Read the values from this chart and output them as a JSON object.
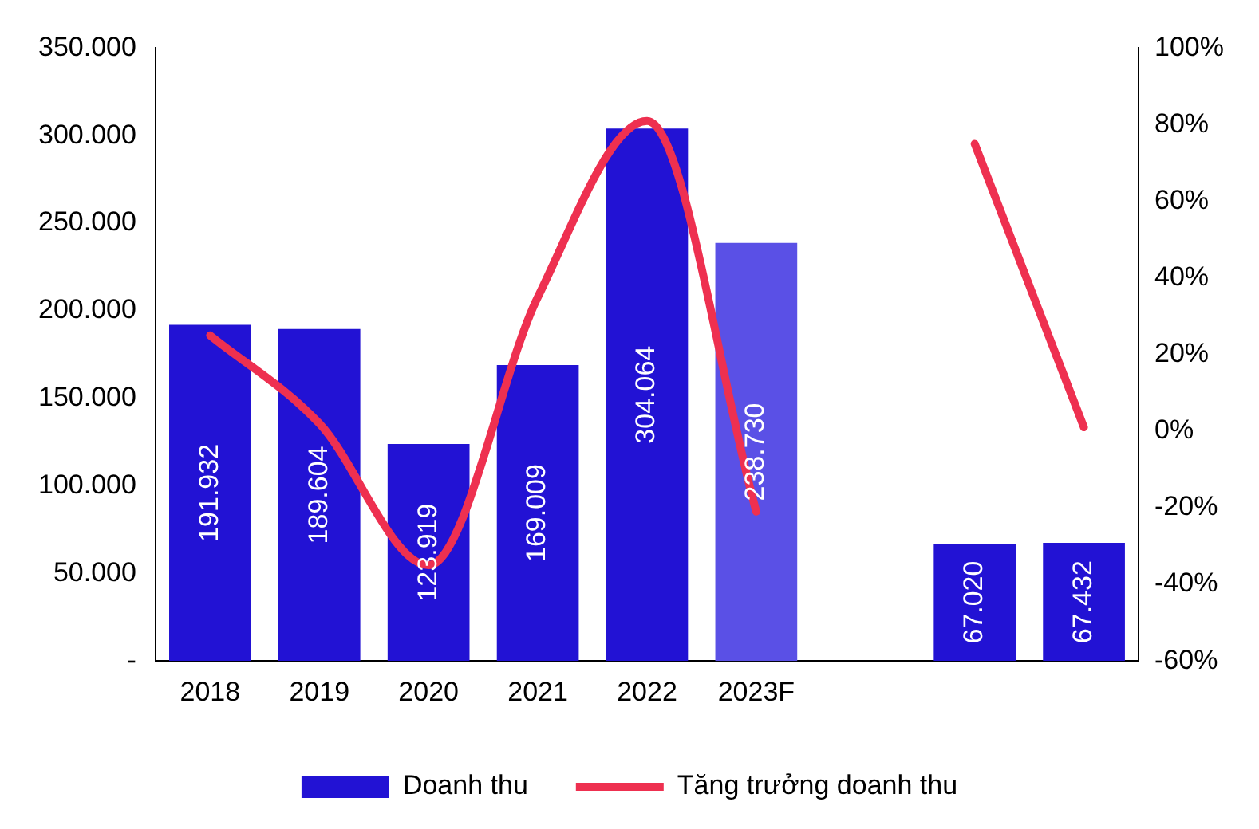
{
  "chart_data": {
    "type": "bar",
    "categories": [
      "2018",
      "2019",
      "2020",
      "2021",
      "2022",
      "2023F",
      null,
      null,
      null
    ],
    "series": [
      {
        "name": "Doanh thu",
        "color": "#2212d4",
        "colors": [
          "#2212d4",
          "#2212d4",
          "#2212d4",
          "#2212d4",
          "#2212d4",
          "#5a50e6",
          null,
          "#2212d4",
          "#2212d4"
        ],
        "values": [
          191932,
          189604,
          123919,
          169009,
          304064,
          238730,
          null,
          67020,
          67432
        ],
        "value_labels": [
          "191.932",
          "189.604",
          "123.919",
          "169.009",
          "304.064",
          "238.730",
          null,
          "67.020",
          "67.432"
        ]
      },
      {
        "name": "Tăng trưởng doanh thu",
        "type": "line",
        "axis": "y2",
        "color": "#ee3050",
        "values": [
          25,
          2,
          -35,
          35,
          81,
          -21,
          null,
          75,
          1
        ]
      }
    ],
    "ylim": [
      0,
      350000
    ],
    "yticks": [
      {
        "value": 0,
        "label": "-"
      },
      {
        "value": 50000,
        "label": "50.000"
      },
      {
        "value": 100000,
        "label": "100.000"
      },
      {
        "value": 150000,
        "label": "150.000"
      },
      {
        "value": 200000,
        "label": "200.000"
      },
      {
        "value": 250000,
        "label": "250.000"
      },
      {
        "value": 300000,
        "label": "300.000"
      },
      {
        "value": 350000,
        "label": "350.000"
      }
    ],
    "y2lim": [
      -60,
      100
    ],
    "y2ticks": [
      {
        "value": -60,
        "label": "-60%"
      },
      {
        "value": -40,
        "label": "-40%"
      },
      {
        "value": -20,
        "label": "-20%"
      },
      {
        "value": 0,
        "label": "0%"
      },
      {
        "value": 20,
        "label": "20%"
      },
      {
        "value": 40,
        "label": "40%"
      },
      {
        "value": 60,
        "label": "60%"
      },
      {
        "value": 80,
        "label": "80%"
      },
      {
        "value": 100,
        "label": "100%"
      }
    ],
    "legend": "bottom",
    "grid": false,
    "marker": "none",
    "line_style": "solid"
  }
}
